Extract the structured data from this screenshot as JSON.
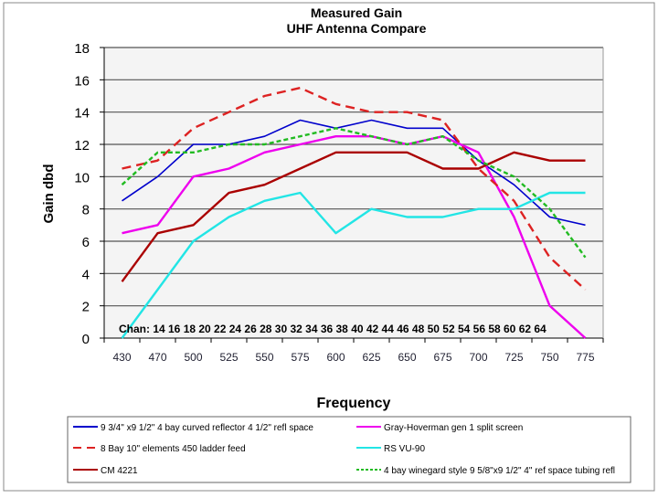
{
  "chart_data": {
    "type": "line",
    "title": "Measured Gain",
    "subtitle": "UHF Antenna Compare",
    "xlabel": "Frequency",
    "ylabel": "Gain dbd",
    "ylim": [
      0,
      18
    ],
    "yticks": [
      "0",
      "2",
      "4",
      "6",
      "8",
      "10",
      "12",
      "14",
      "16",
      "18"
    ],
    "categories": [
      "430",
      "470",
      "500",
      "525",
      "550",
      "575",
      "600",
      "625",
      "650",
      "675",
      "700",
      "725",
      "750",
      "775"
    ],
    "annotation": "Chan: 14 16 18 20 22 24 26 28 30 32 34 36 38 40 42 44 46 48 50 52 54 56 58 60 62 64",
    "grid": true,
    "legend_position": "bottom",
    "series": [
      {
        "name": "9 3/4\" x9 1/2\" 4 bay curved reflector 4 1/2\" refl space",
        "color": "#0000cc",
        "dash": "solid",
        "values": [
          8.5,
          10,
          12,
          12,
          12.5,
          13.5,
          13,
          13.5,
          13,
          13,
          11,
          9.5,
          7.5,
          7
        ]
      },
      {
        "name": "Gray-Hoverman gen 1 split screen",
        "color": "#ee00ee",
        "dash": "solid",
        "values": [
          6.5,
          7,
          10,
          10.5,
          11.5,
          12,
          12.5,
          12.5,
          12,
          12.5,
          11.5,
          7.5,
          2,
          0
        ]
      },
      {
        "name": "8 Bay 10\" elements 450 ladder feed",
        "color": "#dd2222",
        "dash": "long",
        "values": [
          10.5,
          11,
          13,
          14,
          15,
          15.5,
          14.5,
          14,
          14,
          13.5,
          10.5,
          8.5,
          5,
          3
        ]
      },
      {
        "name": "RS VU-90",
        "color": "#22e5e5",
        "dash": "solid",
        "values": [
          0,
          3,
          6,
          7.5,
          8.5,
          9,
          6.5,
          8,
          7.5,
          7.5,
          8,
          8,
          9,
          9
        ]
      },
      {
        "name": "CM 4221",
        "color": "#aa0000",
        "dash": "solid",
        "values": [
          3.5,
          6.5,
          7,
          9,
          9.5,
          10.5,
          11.5,
          11.5,
          11.5,
          10.5,
          10.5,
          11.5,
          11,
          11
        ]
      },
      {
        "name": "4 bay winegard style 9 5/8\"x9  1/2\"  4\" ref space tubing refl",
        "color": "#22bb22",
        "dash": "short",
        "values": [
          9.5,
          11.5,
          11.5,
          12,
          12,
          12.5,
          13,
          12.5,
          12,
          12.5,
          11,
          10,
          8,
          5
        ]
      }
    ]
  }
}
